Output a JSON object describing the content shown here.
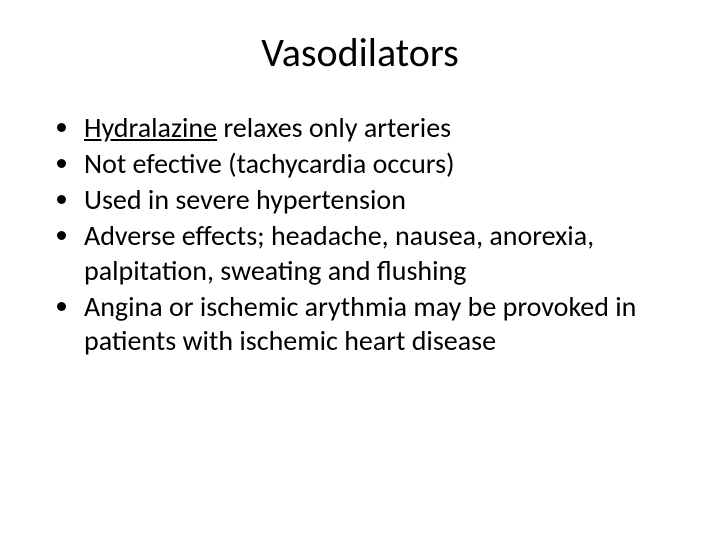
{
  "slide": {
    "title": "Vasodilators",
    "background_color": "#ffffff",
    "text_color": "#000000",
    "title_fontsize": 40,
    "body_fontsize": 28,
    "font_family": "Calibri",
    "bullets": [
      {
        "underlined_prefix": "Hydralazine",
        "rest": " relaxes only arteries"
      },
      {
        "text": "Not efective (tachycardia occurs)"
      },
      {
        "text": "Used in severe hypertension"
      },
      {
        "text": "Adverse effects; headache, nausea, anorexia, palpitation, sweating and flushing"
      },
      {
        "text": "Angina or ischemic arythmia may be provoked in patients with ischemic heart disease"
      }
    ]
  }
}
